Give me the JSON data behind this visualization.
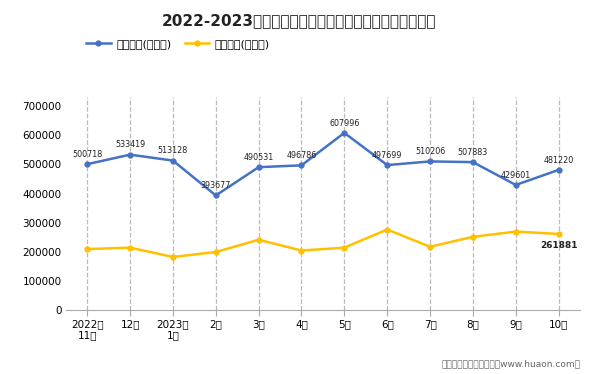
{
  "title": "2022-2023年湖北省商品收发货人所在地进、出口额统计",
  "categories": [
    "2022年\n11月",
    "12月",
    "2023年\n1月",
    "2月",
    "3月",
    "4月",
    "5月",
    "6月",
    "7月",
    "8月",
    "9月",
    "10月"
  ],
  "export_values": [
    500718,
    533419,
    513128,
    393677,
    490531,
    496786,
    607996,
    497699,
    510206,
    507883,
    429601,
    481220
  ],
  "import_values": [
    210000,
    215000,
    183000,
    200000,
    242000,
    205000,
    215000,
    277000,
    218000,
    252000,
    270000,
    261881
  ],
  "export_label": "出口总额(万美元)",
  "import_label": "进口总额(万美元)",
  "export_color": "#4472c4",
  "import_color": "#ffc000",
  "ylabel_ticks": [
    0,
    100000,
    200000,
    300000,
    400000,
    500000,
    600000,
    700000
  ],
  "ylim": [
    0,
    730000
  ],
  "footer": "制图：华经产业研究院（www.huaon.com）",
  "bg_color": "#ffffff",
  "annotation_color": "#222222",
  "import_last_annotation": "261881",
  "vline_color": "#bbbbbb",
  "spine_color": "#aaaaaa"
}
